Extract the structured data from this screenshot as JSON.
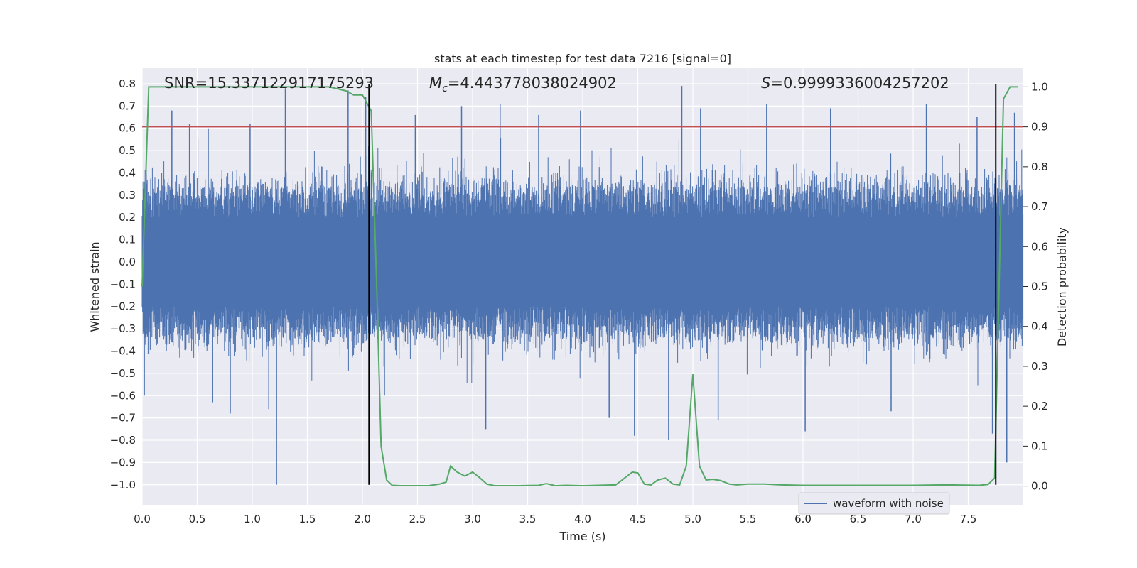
{
  "chart_data": {
    "type": "line",
    "title": "stats at each timestep for test data 7216 [signal=0]",
    "xlabel": "Time (s)",
    "ylabel": "Whitened strain",
    "y2label": "Detection probability",
    "xlim": [
      0.0,
      8.0
    ],
    "ylim": [
      -1.09,
      0.87
    ],
    "y2lim": [
      -0.047,
      1.047
    ],
    "x_ticks": [
      "0.0",
      "0.5",
      "1.0",
      "1.5",
      "2.0",
      "2.5",
      "3.0",
      "3.5",
      "4.0",
      "4.5",
      "5.0",
      "5.5",
      "6.0",
      "6.5",
      "7.0",
      "7.5"
    ],
    "y_ticks": [
      "0.8",
      "0.7",
      "0.6",
      "0.5",
      "0.4",
      "0.3",
      "0.2",
      "0.1",
      "0.0",
      "−0.1",
      "−0.2",
      "−0.3",
      "−0.4",
      "−0.5",
      "−0.6",
      "−0.7",
      "−0.8",
      "−0.9",
      "−1.0"
    ],
    "y2_ticks": [
      "1.0",
      "0.9",
      "0.8",
      "0.7",
      "0.6",
      "0.5",
      "0.4",
      "0.3",
      "0.2",
      "0.1",
      "0.0"
    ],
    "grid": true,
    "annotations": {
      "snr": "SNR=15.337122917175293",
      "mc_symbol": "M",
      "mc_sub": "c",
      "mc_value": "=4.443778038024902",
      "s_symbol": "S",
      "s_value": "=0.9999336004257202"
    },
    "threshold": {
      "value": 0.9,
      "axis": "right",
      "color": "#c44e52"
    },
    "vertical_lines": [
      {
        "x": 2.06,
        "y_from": -1.0,
        "y_to": 0.8
      },
      {
        "x": 7.75,
        "y_from": -1.0,
        "y_to": 0.8
      }
    ],
    "series": [
      {
        "name": "waveform with noise",
        "axis": "left",
        "color": "#4c72b0",
        "kind": "dense-noise",
        "spikes": [
          {
            "x": 0.02,
            "y": -0.6
          },
          {
            "x": 0.27,
            "y": 0.68
          },
          {
            "x": 0.43,
            "y": 0.62
          },
          {
            "x": 0.6,
            "y": 0.6
          },
          {
            "x": 0.64,
            "y": -0.63
          },
          {
            "x": 0.8,
            "y": -0.68
          },
          {
            "x": 0.98,
            "y": 0.62
          },
          {
            "x": 1.15,
            "y": -0.66
          },
          {
            "x": 1.22,
            "y": -1.0
          },
          {
            "x": 1.3,
            "y": 0.78
          },
          {
            "x": 1.87,
            "y": 0.77
          },
          {
            "x": 2.03,
            "y": 0.74
          },
          {
            "x": 2.2,
            "y": -0.6
          },
          {
            "x": 2.48,
            "y": 0.66
          },
          {
            "x": 2.9,
            "y": 0.7
          },
          {
            "x": 3.12,
            "y": -0.75
          },
          {
            "x": 3.25,
            "y": 0.71
          },
          {
            "x": 3.6,
            "y": 0.66
          },
          {
            "x": 3.98,
            "y": 0.68
          },
          {
            "x": 4.24,
            "y": -0.7
          },
          {
            "x": 4.47,
            "y": -0.78
          },
          {
            "x": 4.78,
            "y": -0.8
          },
          {
            "x": 4.9,
            "y": 0.79
          },
          {
            "x": 5.07,
            "y": 0.69
          },
          {
            "x": 5.23,
            "y": -0.71
          },
          {
            "x": 5.67,
            "y": 0.71
          },
          {
            "x": 6.02,
            "y": -0.76
          },
          {
            "x": 6.25,
            "y": 0.69
          },
          {
            "x": 6.8,
            "y": -0.67
          },
          {
            "x": 7.12,
            "y": 0.71
          },
          {
            "x": 7.58,
            "y": 0.65
          },
          {
            "x": 7.72,
            "y": -0.77
          },
          {
            "x": 7.85,
            "y": -0.9
          },
          {
            "x": 7.92,
            "y": 0.67
          }
        ]
      },
      {
        "name": "",
        "axis": "right",
        "color": "#55a868",
        "x": [
          0.0,
          0.06,
          0.15,
          0.3,
          0.6,
          1.0,
          1.4,
          1.7,
          1.85,
          1.92,
          2.0,
          2.08,
          2.13,
          2.17,
          2.22,
          2.27,
          2.35,
          2.6,
          2.7,
          2.76,
          2.8,
          2.86,
          2.93,
          3.0,
          3.06,
          3.13,
          3.2,
          3.4,
          3.6,
          3.67,
          3.75,
          3.85,
          4.0,
          4.3,
          4.45,
          4.5,
          4.56,
          4.62,
          4.68,
          4.75,
          4.82,
          4.88,
          4.94,
          5.0,
          5.06,
          5.12,
          5.18,
          5.25,
          5.33,
          5.4,
          5.5,
          5.65,
          5.8,
          6.0,
          6.5,
          7.0,
          7.3,
          7.6,
          7.68,
          7.74,
          7.78,
          7.82,
          7.88,
          7.95
        ],
        "y": [
          0.5,
          1.0,
          1.0,
          1.0,
          1.0,
          1.0,
          1.0,
          1.0,
          0.99,
          0.98,
          0.98,
          0.94,
          0.5,
          0.1,
          0.015,
          0.002,
          0.001,
          0.001,
          0.005,
          0.01,
          0.05,
          0.035,
          0.025,
          0.035,
          0.022,
          0.005,
          0.001,
          0.001,
          0.002,
          0.006,
          0.001,
          0.002,
          0.001,
          0.003,
          0.035,
          0.033,
          0.005,
          0.003,
          0.015,
          0.02,
          0.005,
          0.003,
          0.05,
          0.28,
          0.05,
          0.015,
          0.017,
          0.014,
          0.005,
          0.003,
          0.005,
          0.005,
          0.003,
          0.002,
          0.002,
          0.002,
          0.003,
          0.002,
          0.004,
          0.02,
          0.5,
          0.97,
          1.0,
          1.0
        ]
      }
    ],
    "legend": {
      "position": "lower-right",
      "entries": [
        "waveform with noise"
      ]
    }
  }
}
